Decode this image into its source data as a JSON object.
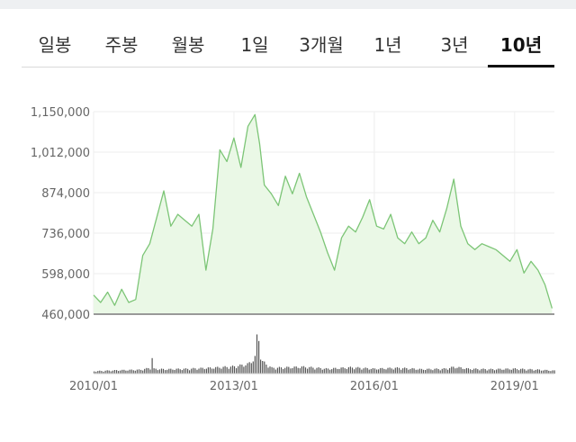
{
  "tabs": [
    {
      "label": "일봉"
    },
    {
      "label": "주봉"
    },
    {
      "label": "월봉"
    },
    {
      "label": "1일"
    },
    {
      "label": "3개월"
    },
    {
      "label": "1년"
    },
    {
      "label": "3년"
    },
    {
      "label": "10년"
    }
  ],
  "active_tab": 7,
  "colors": {
    "line": "#7cc576",
    "fill": "#eaf8e6",
    "volume": "#555555",
    "grid": "#eeeeee",
    "axis": "#999999",
    "text": "#666666"
  },
  "chart_data": {
    "type": "area",
    "title": "",
    "xlabel": "",
    "ylabel": "",
    "ylim": [
      460000,
      1150000
    ],
    "y_ticks": [
      "1,150,000",
      "1,012,000",
      "874,000",
      "736,000",
      "598,000",
      "460,000"
    ],
    "y_tick_values": [
      1150000,
      1012000,
      874000,
      736000,
      598000,
      460000
    ],
    "x_ticks": [
      "2010/01",
      "2013/01",
      "2016/01",
      "2019/01"
    ],
    "x_tick_values": [
      2010.0,
      2013.0,
      2016.0,
      2019.0
    ],
    "xlim": [
      2010.0,
      2019.85
    ],
    "grid": true,
    "series": [
      {
        "x": [
          2010.0,
          2010.15,
          2010.3,
          2010.45,
          2010.6,
          2010.75,
          2010.9,
          2011.05,
          2011.2,
          2011.35,
          2011.5,
          2011.65,
          2011.8,
          2011.95,
          2012.1,
          2012.25,
          2012.4,
          2012.55,
          2012.7,
          2012.85,
          2013.0,
          2013.15,
          2013.3,
          2013.45,
          2013.55,
          2013.65,
          2013.8,
          2013.95,
          2014.1,
          2014.25,
          2014.4,
          2014.55,
          2014.7,
          2014.85,
          2015.0,
          2015.15,
          2015.3,
          2015.45,
          2015.6,
          2015.75,
          2015.9,
          2016.05,
          2016.2,
          2016.35,
          2016.5,
          2016.65,
          2016.8,
          2016.95,
          2017.1,
          2017.25,
          2017.4,
          2017.55,
          2017.7,
          2017.85,
          2018.0,
          2018.15,
          2018.3,
          2018.45,
          2018.6,
          2018.75,
          2018.9,
          2019.05,
          2019.2,
          2019.35,
          2019.5,
          2019.65,
          2019.8
        ],
        "values": [
          525000,
          500000,
          535000,
          490000,
          545000,
          500000,
          510000,
          660000,
          700000,
          790000,
          880000,
          760000,
          800000,
          780000,
          760000,
          800000,
          610000,
          750000,
          1020000,
          980000,
          1060000,
          960000,
          1100000,
          1140000,
          1040000,
          900000,
          870000,
          830000,
          930000,
          870000,
          940000,
          860000,
          800000,
          740000,
          670000,
          610000,
          720000,
          760000,
          740000,
          790000,
          850000,
          760000,
          750000,
          800000,
          720000,
          700000,
          740000,
          700000,
          720000,
          780000,
          740000,
          820000,
          920000,
          760000,
          700000,
          680000,
          700000,
          690000,
          680000,
          660000,
          640000,
          680000,
          600000,
          640000,
          610000,
          560000,
          480000
        ]
      }
    ],
    "volume": {
      "x": [
        2010.0,
        2010.5,
        2011.0,
        2011.2,
        2011.23,
        2011.26,
        2011.5,
        2012.0,
        2012.5,
        2013.0,
        2013.3,
        2013.45,
        2013.5,
        2013.55,
        2013.6,
        2013.8,
        2014.5,
        2015.0,
        2015.5,
        2016.0,
        2016.5,
        2017.0,
        2017.5,
        2017.7,
        2018.0,
        2018.5,
        2019.0,
        2019.5,
        2019.85
      ],
      "values": [
        0.05,
        0.07,
        0.08,
        0.12,
        0.45,
        0.1,
        0.09,
        0.1,
        0.12,
        0.15,
        0.2,
        0.35,
        1.0,
        0.4,
        0.25,
        0.12,
        0.14,
        0.1,
        0.13,
        0.1,
        0.12,
        0.09,
        0.1,
        0.14,
        0.1,
        0.09,
        0.1,
        0.08,
        0.06
      ]
    }
  }
}
